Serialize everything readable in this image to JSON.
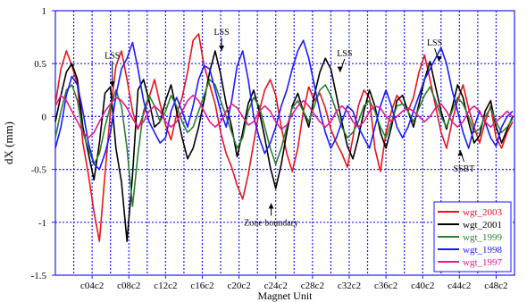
{
  "chart_data": {
    "type": "line",
    "xlabel": "Magnet Unit",
    "ylabel": "dX (mm)",
    "x_tick_labels": [
      "c04c2",
      "c08c2",
      "c12c2",
      "c16c2",
      "c20c2",
      "c24c2",
      "c28c2",
      "c32c2",
      "c36c2",
      "c40c2",
      "c44c2",
      "c48c2"
    ],
    "x_tick_positions": [
      4,
      8,
      12,
      16,
      20,
      24,
      28,
      32,
      36,
      40,
      44,
      48
    ],
    "xlim": [
      0,
      50
    ],
    "ylim": [
      -1.5,
      1
    ],
    "y_ticks": [
      -1.5,
      -1,
      -0.5,
      0,
      0.5,
      1
    ],
    "y_tick_labels": [
      "-1.5",
      "-1",
      "-0.5",
      "0",
      "0.5",
      "1"
    ],
    "grid": true,
    "legend_position": "bottom-right",
    "annotations": [
      {
        "text": "LSS",
        "x": 6.2,
        "y": 0.55,
        "arrow_to": [
          6.2,
          0.28
        ]
      },
      {
        "text": "LSS",
        "x": 18.1,
        "y": 0.77,
        "arrow_to": [
          18.1,
          0.62
        ]
      },
      {
        "text": "LSS",
        "x": 31.5,
        "y": 0.57,
        "arrow_to": [
          31.0,
          0.42
        ]
      },
      {
        "text": "LSS",
        "x": 41.3,
        "y": 0.67,
        "arrow_to": [
          41.8,
          0.52
        ]
      },
      {
        "text": "Zone boundary",
        "x": 23.5,
        "y": -1.03,
        "arrow_to": [
          23.5,
          -0.82
        ]
      },
      {
        "text": "SSBT",
        "x": 44.5,
        "y": -0.52,
        "arrow_to": [
          44.1,
          -0.32
        ]
      }
    ],
    "series": [
      {
        "name": "wgt_2003",
        "color": "#e8141b",
        "x": [
          0,
          0.6,
          1.2,
          1.8,
          2.4,
          3.0,
          3.6,
          4.2,
          4.8,
          5.4,
          6.0,
          6.6,
          7.2,
          7.8,
          8.4,
          9.0,
          9.6,
          10.2,
          10.8,
          11.4,
          12.0,
          12.6,
          13.2,
          13.8,
          14.4,
          15.0,
          15.6,
          16.2,
          16.8,
          17.4,
          18.0,
          18.6,
          19.2,
          19.8,
          20.4,
          21.0,
          21.6,
          22.2,
          22.8,
          23.4,
          24.0,
          24.6,
          25.2,
          25.8,
          26.4,
          27.0,
          27.6,
          28.2,
          28.8,
          29.4,
          30.0,
          30.6,
          31.2,
          31.8,
          32.4,
          33.0,
          33.6,
          34.2,
          34.8,
          35.4,
          36.0,
          36.6,
          37.2,
          37.8,
          38.4,
          39.0,
          39.6,
          40.2,
          40.8,
          41.4,
          42.0,
          42.6,
          43.2,
          43.8,
          44.4,
          45.0,
          45.6,
          46.2,
          46.8,
          47.4,
          48.0,
          48.6,
          49.2,
          49.8
        ],
        "values": [
          0.12,
          0.45,
          0.62,
          0.48,
          0.3,
          -0.25,
          -0.55,
          -0.9,
          -1.18,
          -0.55,
          0.05,
          0.48,
          0.62,
          0.35,
          0.05,
          -0.12,
          0.02,
          0.18,
          0.35,
          0.12,
          -0.08,
          -0.22,
          0.02,
          0.18,
          0.42,
          0.72,
          0.78,
          0.48,
          0.3,
          0.12,
          -0.15,
          -0.35,
          -0.48,
          -0.65,
          -0.78,
          -0.55,
          -0.25,
          0.05,
          0.25,
          0.35,
          0.2,
          -0.1,
          -0.35,
          -0.52,
          -0.3,
          0.05,
          0.28,
          0.15,
          0.22,
          0.08,
          -0.12,
          -0.25,
          -0.35,
          -0.48,
          -0.2,
          0.1,
          0.25,
          0.18,
          -0.3,
          -0.52,
          -0.15,
          0.05,
          0.2,
          0.12,
          0.05,
          0.18,
          0.42,
          0.58,
          0.35,
          0.1,
          -0.15,
          -0.3,
          -0.05,
          0.15,
          0.3,
          0.08,
          -0.1,
          -0.25,
          -0.05,
          0.1,
          -0.2,
          -0.3,
          -0.15,
          -0.05
        ]
      },
      {
        "name": "wgt_2001",
        "color": "#000000",
        "x": [
          0,
          0.6,
          1.2,
          1.8,
          2.4,
          3.0,
          3.6,
          4.2,
          4.8,
          5.4,
          6.0,
          6.6,
          7.2,
          7.8,
          8.4,
          9.0,
          9.6,
          10.2,
          10.8,
          11.4,
          12.0,
          12.6,
          13.2,
          13.8,
          14.4,
          15.0,
          15.6,
          16.2,
          16.8,
          17.4,
          18.0,
          18.6,
          19.2,
          19.8,
          20.4,
          21.0,
          21.6,
          22.2,
          22.8,
          23.4,
          24.0,
          24.6,
          25.2,
          25.8,
          26.4,
          27.0,
          27.6,
          28.2,
          28.8,
          29.4,
          30.0,
          30.6,
          31.2,
          31.8,
          32.4,
          33.0,
          33.6,
          34.2,
          34.8,
          35.4,
          36.0,
          36.6,
          37.2,
          37.8,
          38.4,
          39.0,
          39.6,
          40.2,
          40.8,
          41.4,
          42.0,
          42.6,
          43.2,
          43.8,
          44.4,
          45.0,
          45.6,
          46.2,
          46.8,
          47.4,
          48.0,
          48.6,
          49.2,
          49.8
        ],
        "values": [
          -0.05,
          0.2,
          0.42,
          0.5,
          0.35,
          -0.1,
          -0.35,
          -0.6,
          -0.25,
          0.22,
          0.28,
          -0.3,
          -0.62,
          -1.18,
          -0.55,
          0.25,
          0.35,
          0.15,
          -0.1,
          -0.05,
          0.15,
          0.3,
          0.05,
          -0.2,
          -0.4,
          -0.3,
          -0.1,
          0.15,
          0.42,
          0.62,
          0.4,
          0.12,
          -0.1,
          -0.38,
          -0.15,
          0.12,
          0.25,
          0.05,
          -0.2,
          -0.48,
          -0.68,
          -0.45,
          -0.15,
          0.1,
          0.22,
          0.05,
          -0.1,
          0.2,
          0.42,
          0.55,
          0.45,
          0.2,
          -0.05,
          -0.28,
          -0.4,
          -0.2,
          0.05,
          0.25,
          0.1,
          -0.15,
          -0.3,
          -0.1,
          0.15,
          0.2,
          0.05,
          -0.1,
          0.12,
          0.35,
          0.52,
          0.28,
          0.05,
          -0.12,
          0.08,
          0.3,
          0.18,
          -0.05,
          -0.25,
          -0.18,
          0.05,
          0.15,
          -0.1,
          -0.25,
          -0.12,
          0.0
        ]
      },
      {
        "name": "wgt_1999",
        "color": "#2e7d32",
        "x": [
          0,
          0.6,
          1.2,
          1.8,
          2.4,
          3.0,
          3.6,
          4.2,
          4.8,
          5.4,
          6.0,
          6.6,
          7.2,
          7.8,
          8.4,
          9.0,
          9.6,
          10.2,
          10.8,
          11.4,
          12.0,
          12.6,
          13.2,
          13.8,
          14.4,
          15.0,
          15.6,
          16.2,
          16.8,
          17.4,
          18.0,
          18.6,
          19.2,
          19.8,
          20.4,
          21.0,
          21.6,
          22.2,
          22.8,
          23.4,
          24.0,
          24.6,
          25.2,
          25.8,
          26.4,
          27.0,
          27.6,
          28.2,
          28.8,
          29.4,
          30.0,
          30.6,
          31.2,
          31.8,
          32.4,
          33.0,
          33.6,
          34.2,
          34.8,
          35.4,
          36.0,
          36.6,
          37.2,
          37.8,
          38.4,
          39.0,
          39.6,
          40.2,
          40.8,
          41.4,
          42.0,
          42.6,
          43.2,
          43.8,
          44.4,
          45.0,
          45.6,
          46.2,
          46.8,
          47.4,
          48.0,
          48.6,
          49.2,
          49.8
        ],
        "values": [
          -0.2,
          0.05,
          0.25,
          0.3,
          0.15,
          -0.15,
          -0.3,
          -0.45,
          -0.35,
          -0.1,
          0.1,
          0.25,
          0.1,
          -0.3,
          -0.85,
          -0.35,
          0.05,
          0.2,
          0.1,
          -0.05,
          0.05,
          0.2,
          0.1,
          -0.05,
          -0.15,
          -0.1,
          0.05,
          0.2,
          0.35,
          0.3,
          0.15,
          0.0,
          -0.15,
          -0.3,
          -0.2,
          0.05,
          0.18,
          0.1,
          -0.1,
          -0.3,
          -0.45,
          -0.3,
          -0.1,
          0.08,
          0.15,
          0.05,
          -0.05,
          0.1,
          0.25,
          0.3,
          0.2,
          0.05,
          -0.1,
          -0.2,
          -0.15,
          -0.05,
          0.1,
          0.15,
          0.05,
          -0.1,
          -0.2,
          -0.05,
          0.1,
          0.12,
          0.05,
          -0.05,
          0.08,
          0.2,
          0.28,
          0.15,
          0.0,
          -0.1,
          0.05,
          0.18,
          0.12,
          0.0,
          -0.15,
          -0.12,
          0.0,
          0.08,
          -0.05,
          -0.15,
          -0.1,
          -0.02
        ]
      },
      {
        "name": "wgt_1998",
        "color": "#1a1aff",
        "x": [
          0,
          0.6,
          1.2,
          1.8,
          2.4,
          3.0,
          3.6,
          4.2,
          4.8,
          5.4,
          6.0,
          6.6,
          7.2,
          7.8,
          8.4,
          9.0,
          9.6,
          10.2,
          10.8,
          11.4,
          12.0,
          12.6,
          13.2,
          13.8,
          14.4,
          15.0,
          15.6,
          16.2,
          16.8,
          17.4,
          18.0,
          18.6,
          19.2,
          19.8,
          20.4,
          21.0,
          21.6,
          22.2,
          22.8,
          23.4,
          24.0,
          24.6,
          25.2,
          25.8,
          26.4,
          27.0,
          27.6,
          28.2,
          28.8,
          29.4,
          30.0,
          30.6,
          31.2,
          31.8,
          32.4,
          33.0,
          33.6,
          34.2,
          34.8,
          35.4,
          36.0,
          36.6,
          37.2,
          37.8,
          38.4,
          39.0,
          39.6,
          40.2,
          40.8,
          41.4,
          42.0,
          42.6,
          43.2,
          43.8,
          44.4,
          45.0,
          45.6,
          46.2,
          46.8,
          47.4,
          48.0,
          48.6,
          49.2,
          49.8
        ],
        "values": [
          -0.3,
          -0.1,
          0.2,
          0.38,
          0.3,
          0.05,
          -0.25,
          -0.45,
          -0.5,
          -0.35,
          -0.15,
          0.2,
          0.45,
          0.55,
          0.7,
          0.45,
          0.15,
          -0.05,
          -0.15,
          -0.25,
          -0.2,
          0.05,
          0.18,
          0.05,
          -0.1,
          0.1,
          0.35,
          0.48,
          0.45,
          0.25,
          0.05,
          -0.1,
          0.15,
          0.48,
          0.62,
          0.35,
          0.0,
          -0.2,
          -0.35,
          -0.25,
          -0.1,
          0.1,
          0.25,
          0.45,
          0.62,
          0.72,
          0.55,
          0.3,
          0.05,
          -0.15,
          -0.3,
          -0.2,
          -0.05,
          0.1,
          0.05,
          -0.1,
          -0.2,
          -0.3,
          -0.1,
          0.1,
          0.25,
          0.1,
          -0.1,
          -0.2,
          -0.1,
          0.05,
          0.2,
          0.35,
          0.45,
          0.55,
          0.65,
          0.5,
          0.25,
          0.05,
          -0.15,
          -0.3,
          -0.1,
          0.05,
          -0.05,
          -0.2,
          -0.28,
          -0.1,
          0.0,
          0.05
        ]
      },
      {
        "name": "wgt_1997",
        "color": "#e7178f",
        "x": [
          0,
          0.6,
          1.2,
          1.8,
          2.4,
          3.0,
          3.6,
          4.2,
          4.8,
          5.4,
          6.0,
          6.6,
          7.2,
          7.8,
          8.4,
          9.0,
          9.6,
          10.2,
          10.8,
          11.4,
          12.0,
          12.6,
          13.2,
          13.8,
          14.4,
          15.0,
          15.6,
          16.2,
          16.8,
          17.4,
          18.0,
          18.6,
          19.2,
          19.8,
          20.4,
          21.0,
          21.6,
          22.2,
          22.8,
          23.4,
          24.0,
          24.6,
          25.2,
          25.8,
          26.4,
          27.0,
          27.6,
          28.2,
          28.8,
          29.4,
          30.0,
          30.6,
          31.2,
          31.8,
          32.4,
          33.0,
          33.6,
          34.2,
          34.8,
          35.4,
          36.0,
          36.6,
          37.2,
          37.8,
          38.4,
          39.0,
          39.6,
          40.2,
          40.8,
          41.4,
          42.0,
          42.6,
          43.2,
          43.8,
          44.4,
          45.0,
          45.6,
          46.2,
          46.8,
          47.4,
          48.0,
          48.6,
          49.2,
          49.8
        ],
        "values": [
          0.1,
          0.2,
          0.15,
          0.05,
          -0.05,
          -0.15,
          -0.2,
          -0.15,
          -0.05,
          0.05,
          0.12,
          0.18,
          0.15,
          0.08,
          -0.02,
          -0.1,
          -0.05,
          0.05,
          0.1,
          0.05,
          -0.05,
          -0.1,
          -0.05,
          0.05,
          0.15,
          0.2,
          0.15,
          0.05,
          -0.05,
          -0.1,
          -0.05,
          0.05,
          0.12,
          0.08,
          0.0,
          -0.08,
          -0.05,
          0.05,
          0.1,
          0.05,
          -0.05,
          -0.12,
          -0.08,
          0.02,
          0.1,
          0.15,
          0.1,
          0.02,
          -0.05,
          -0.1,
          -0.05,
          0.05,
          0.1,
          0.05,
          -0.05,
          -0.1,
          -0.05,
          0.05,
          0.1,
          0.08,
          0.0,
          -0.05,
          0.0,
          0.05,
          0.08,
          0.05,
          0.0,
          -0.05,
          0.0,
          0.08,
          0.12,
          0.05,
          -0.05,
          -0.1,
          -0.05,
          0.05,
          0.1,
          0.05,
          -0.05,
          -0.1,
          -0.05,
          0.0,
          0.05,
          0.0
        ]
      }
    ]
  }
}
